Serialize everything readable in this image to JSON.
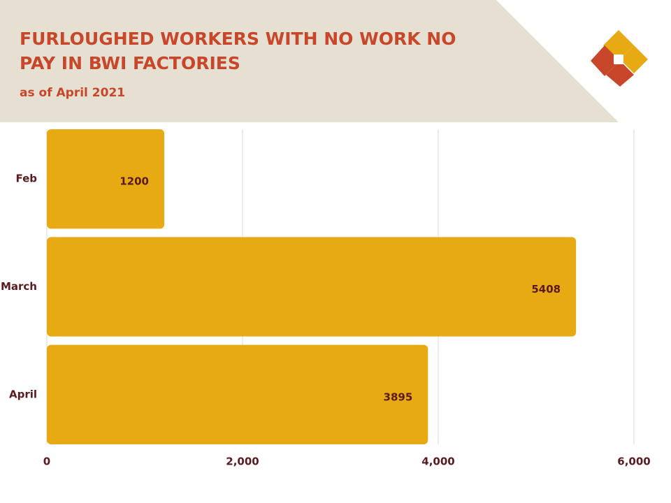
{
  "chart_data": {
    "type": "barh",
    "title": "FURLOUGHED WORKERS WITH NO WORK NO PAY IN BWI FACTORIES",
    "subtitle": "as of April 2021",
    "categories": [
      "Feb",
      "March",
      "April"
    ],
    "values": [
      1200,
      5408,
      3895
    ],
    "color": "#e8aa12",
    "xlim": [
      0,
      6000
    ],
    "xticks": [
      0,
      {
        "value": 2000,
        "label": "2,000"
      },
      {
        "value": 4000,
        "label": "4,000"
      },
      {
        "value": 6000,
        "label": "6,000"
      }
    ],
    "grid": true
  }
}
